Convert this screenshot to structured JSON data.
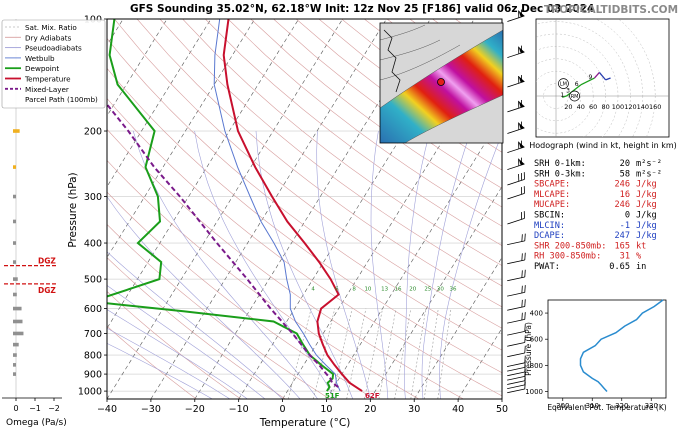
{
  "header": {
    "title": "GFS Sounding 35.02°N, 62.18°W Init: 12z Nov 25 [F186] valid 06z Dec 03 2024",
    "brand": "TROPICALTIDBITS.COM"
  },
  "colors": {
    "temperature": "#c8102e",
    "dewpoint": "#1a9e1a",
    "wetbulb": "#5a78d0",
    "parcel": "#7a1a8a",
    "hodograph": "#2a3fb0",
    "theta_e": "#2a8ccf",
    "dgz": "#d01010"
  },
  "legend": {
    "items": [
      {
        "label": "Sat. Mix. Ratio",
        "color": "#c8c8c8",
        "style": "dashed"
      },
      {
        "label": "Dry Adiabats",
        "color": "#d8a0a0",
        "style": "solid"
      },
      {
        "label": "Pseudoadiabats",
        "color": "#a0a0d8",
        "style": "solid"
      },
      {
        "label": "Wetbulb",
        "color": "#5a78d0",
        "style": "solid"
      },
      {
        "label": "Dewpoint",
        "color": "#1a9e1a",
        "style": "solid"
      },
      {
        "label": "Temperature",
        "color": "#c8102e",
        "style": "solid"
      },
      {
        "label": "Mixed-Layer",
        "color": "#7a1a8a",
        "style": "dashed"
      },
      {
        "label": "Parcel Path (100mb)",
        "color": "#7a1a8a",
        "style": "none"
      }
    ]
  },
  "chart_data": [
    {
      "type": "line",
      "name": "skewt",
      "xlabel": "Temperature (°C)",
      "ylabel": "Pressure (hPa)",
      "xlim": [
        -40,
        50
      ],
      "ylim": [
        1050,
        100
      ],
      "y_scale": "log",
      "x_ticks": [
        -40,
        -30,
        -20,
        -10,
        0,
        10,
        20,
        30,
        40,
        50
      ],
      "y_ticks": [
        100,
        200,
        300,
        400,
        500,
        600,
        700,
        800,
        900,
        1000
      ],
      "mixing_ratio_labels": [
        "4",
        "6",
        "8",
        "10",
        "13",
        "16",
        "20",
        "25",
        "30",
        "36"
      ],
      "series": [
        {
          "name": "Temperature",
          "points": [
            [
              1000,
              17
            ],
            [
              950,
              13
            ],
            [
              900,
              10
            ],
            [
              850,
              7
            ],
            [
              800,
              4
            ],
            [
              750,
              1.5
            ],
            [
              700,
              -1
            ],
            [
              650,
              -3
            ],
            [
              600,
              -4
            ],
            [
              550,
              -2
            ],
            [
              500,
              -6
            ],
            [
              450,
              -11
            ],
            [
              400,
              -17
            ],
            [
              350,
              -24
            ],
            [
              300,
              -31
            ],
            [
              250,
              -39
            ],
            [
              200,
              -48
            ],
            [
              150,
              -57
            ],
            [
              125,
              -62
            ],
            [
              100,
              -66
            ]
          ]
        },
        {
          "name": "Dewpoint",
          "points": [
            [
              1000,
              9
            ],
            [
              975,
              9
            ],
            [
              950,
              8
            ],
            [
              925,
              8.5
            ],
            [
              900,
              8
            ],
            [
              850,
              4
            ],
            [
              800,
              0
            ],
            [
              750,
              -3
            ],
            [
              700,
              -6
            ],
            [
              650,
              -13
            ],
            [
              610,
              -35
            ],
            [
              580,
              -54
            ],
            [
              560,
              -55
            ],
            [
              500,
              -45
            ],
            [
              450,
              -47
            ],
            [
              400,
              -55
            ],
            [
              350,
              -53
            ],
            [
              300,
              -57
            ],
            [
              250,
              -64
            ],
            [
              200,
              -67
            ],
            [
              150,
              -82
            ],
            [
              125,
              -88
            ],
            [
              100,
              -92
            ]
          ]
        },
        {
          "name": "Wetbulb",
          "points": [
            [
              1000,
              12
            ],
            [
              950,
              10
            ],
            [
              900,
              8.5
            ],
            [
              850,
              5
            ],
            [
              800,
              1.5
            ],
            [
              750,
              -1.5
            ],
            [
              700,
              -4.5
            ],
            [
              650,
              -8
            ],
            [
              600,
              -11
            ],
            [
              550,
              -13
            ],
            [
              500,
              -16
            ],
            [
              450,
              -19
            ],
            [
              400,
              -24
            ],
            [
              350,
              -30
            ],
            [
              300,
              -36
            ],
            [
              250,
              -43
            ],
            [
              200,
              -51
            ],
            [
              150,
              -60
            ],
            [
              125,
              -64
            ],
            [
              100,
              -68
            ]
          ]
        },
        {
          "name": "Mixed-Layer Parcel Path (100mb)",
          "points": [
            [
              975,
              11
            ],
            [
              950,
              9
            ],
            [
              925,
              8
            ],
            [
              900,
              6.5
            ],
            [
              850,
              3.5
            ],
            [
              800,
              0
            ],
            [
              700,
              -7
            ],
            [
              600,
              -15.5
            ],
            [
              500,
              -25
            ],
            [
              400,
              -37
            ],
            [
              300,
              -52
            ],
            [
              250,
              -62
            ],
            [
              200,
              -73
            ],
            [
              175,
              -80
            ],
            [
              150,
              -88
            ]
          ]
        }
      ],
      "surface_labels": {
        "dewpoint": "51F",
        "temperature": "62F"
      }
    },
    {
      "type": "line",
      "name": "hodograph",
      "xlabel": "Hodograph (wind in kt, height in km)",
      "x_ticks": [
        "20",
        "40",
        "60",
        "80",
        "100",
        "120",
        "140",
        "160"
      ],
      "height_labels": [
        "1",
        "3",
        "6",
        "9"
      ],
      "markers": [
        "LM",
        "RM"
      ],
      "series": [
        {
          "name": "hodograph",
          "points": [
            [
              10,
              -2
            ],
            [
              17,
              0
            ],
            [
              26,
              7
            ],
            [
              40,
              18
            ],
            [
              62,
              29
            ],
            [
              70,
              38
            ],
            [
              80,
              26
            ],
            [
              88,
              29
            ]
          ]
        }
      ]
    },
    {
      "type": "line",
      "name": "theta_e",
      "xlabel": "Equivalent Pot. Temperature (K)",
      "ylabel": "Pressure (hPa)",
      "xlim": [
        295,
        335
      ],
      "ylim": [
        1050,
        300
      ],
      "x_ticks": [
        300,
        310,
        320,
        330
      ],
      "y_ticks": [
        400,
        600,
        800,
        1000
      ],
      "series": [
        {
          "name": "Equivalent Potential Temperature",
          "points": [
            [
              1000,
              315
            ],
            [
              975,
              314
            ],
            [
              950,
              313
            ],
            [
              925,
              312
            ],
            [
              900,
              310
            ],
            [
              850,
              307
            ],
            [
              800,
              306
            ],
            [
              750,
              306
            ],
            [
              700,
              307
            ],
            [
              650,
              311
            ],
            [
              600,
              313
            ],
            [
              550,
              318
            ],
            [
              500,
              321
            ],
            [
              450,
              325
            ],
            [
              400,
              327
            ],
            [
              350,
              331
            ],
            [
              300,
              334
            ]
          ]
        }
      ]
    },
    {
      "type": "bar",
      "name": "omega",
      "xlabel": "Omega (Pa/s)",
      "x_ticks": [
        "0",
        "−1",
        "−2"
      ],
      "xlim": [
        0.5,
        -2.5
      ],
      "bars": [
        {
          "p": 200,
          "value": -0.35,
          "color": "#f0b020"
        },
        {
          "p": 250,
          "value": -0.12,
          "color": "#f0b020"
        },
        {
          "p": 300,
          "value": -0.1,
          "color": "#909090"
        },
        {
          "p": 350,
          "value": -0.08,
          "color": "#909090"
        },
        {
          "p": 400,
          "value": -0.15,
          "color": "#909090"
        },
        {
          "p": 450,
          "value": -0.12,
          "color": "#909090"
        },
        {
          "p": 500,
          "value": -0.25,
          "color": "#909090"
        },
        {
          "p": 550,
          "value": -0.2,
          "color": "#909090"
        },
        {
          "p": 600,
          "value": -0.45,
          "color": "#909090"
        },
        {
          "p": 650,
          "value": -0.5,
          "color": "#909090"
        },
        {
          "p": 700,
          "value": -0.55,
          "color": "#909090"
        },
        {
          "p": 750,
          "value": -0.3,
          "color": "#909090"
        },
        {
          "p": 800,
          "value": -0.2,
          "color": "#909090"
        },
        {
          "p": 850,
          "value": -0.12,
          "color": "#909090"
        },
        {
          "p": 900,
          "value": -0.08,
          "color": "#909090"
        }
      ],
      "dgz_label": "DGZ",
      "dgz_layers": [
        460,
        515
      ]
    }
  ],
  "indices": [
    {
      "label": "SRH 0-1km:",
      "value": "20",
      "unit": "m²s⁻²",
      "color": "#000000"
    },
    {
      "label": "SRH 0-3km:",
      "value": "58",
      "unit": "m²s⁻²",
      "color": "#000000"
    },
    {
      "label": "SBCAPE:",
      "value": "246",
      "unit": "J/kg",
      "color": "#d02020"
    },
    {
      "label": "MLCAPE:",
      "value": "16",
      "unit": "J/kg",
      "color": "#d02020"
    },
    {
      "label": "MUCAPE:",
      "value": "246",
      "unit": "J/kg",
      "color": "#d02020"
    },
    {
      "label": "SBCIN:",
      "value": "0",
      "unit": "J/kg",
      "color": "#000000"
    },
    {
      "label": "MLCIN:",
      "value": "-1",
      "unit": "J/kg",
      "color": "#2040c0"
    },
    {
      "label": "DCAPE:",
      "value": "247",
      "unit": "J/kg",
      "color": "#2040c0"
    },
    {
      "label": "SHR 200-850mb:",
      "value": "165",
      "unit": "kt",
      "color": "#d02020"
    },
    {
      "label": "RH 300-850mb:",
      "value": "31",
      "unit": "%",
      "color": "#d02020"
    },
    {
      "label": "PWAT:",
      "value": "0.65",
      "unit": "in",
      "color": "#000000"
    }
  ],
  "map_inset": {
    "description_color": "#e0201a"
  },
  "wind_barbs": {
    "levels": [
      100,
      125,
      150,
      175,
      200,
      225,
      250,
      275,
      300,
      350,
      400,
      450,
      500,
      550,
      600,
      650,
      700,
      750,
      800,
      850,
      875,
      900,
      925,
      950,
      975,
      1000
    ]
  }
}
